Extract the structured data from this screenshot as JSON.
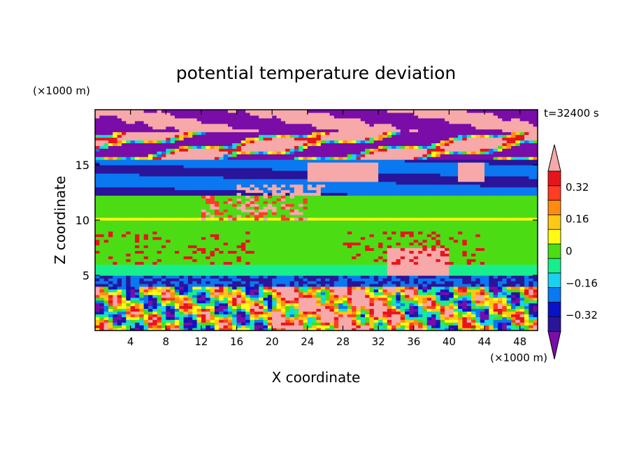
{
  "chart_data": {
    "type": "heatmap",
    "title": "potential temperature deviation",
    "xlabel": "X coordinate",
    "ylabel": "Z coordinate",
    "x_unit": "(×1000 m)",
    "y_unit": "(×1000 m)",
    "time_label": "t=32400 s",
    "xlim": [
      0,
      50
    ],
    "ylim": [
      0,
      20
    ],
    "x_ticks": [
      4,
      8,
      12,
      16,
      20,
      24,
      28,
      32,
      36,
      40,
      44,
      48
    ],
    "y_ticks": [
      5,
      10,
      15
    ],
    "colorbar": {
      "levels": [
        -0.48,
        -0.4,
        -0.32,
        -0.24,
        -0.16,
        -0.08,
        0,
        0.08,
        0.16,
        0.24,
        0.32,
        0.4,
        0.48
      ],
      "tick_labels": [
        "0.32",
        "0.16",
        "0",
        "−0.16",
        "−0.32"
      ],
      "tick_values": [
        0.32,
        0.16,
        0,
        -0.16,
        -0.32
      ],
      "colors": [
        "#7a0ca8",
        "#2a149a",
        "#0a12c8",
        "#0a78f0",
        "#18d2f0",
        "#18ee8c",
        "#4cdc14",
        "#fffa14",
        "#ffc814",
        "#ff8c10",
        "#ff3c24",
        "#e8141c",
        "#f7a8a8"
      ],
      "extend": "both"
    },
    "structure": [
      {
        "z_range": [
          18,
          20
        ],
        "pattern": "pink and purple bands"
      },
      {
        "z_range": [
          15.5,
          18
        ],
        "pattern": "pink/purple layers with red-orange edges"
      },
      {
        "z_range": [
          12,
          15.5
        ],
        "pattern": "blue and dark-blue layers"
      },
      {
        "z_range": [
          10,
          12.5
        ],
        "pattern": "green band with pink plumes"
      },
      {
        "z_range": [
          5,
          10
        ],
        "pattern": "green band with scattered filaments"
      },
      {
        "z_range": [
          4,
          5
        ],
        "pattern": "cyan/blue layer"
      },
      {
        "z_range": [
          0,
          4
        ],
        "pattern": "turbulent mixed-colour boundary layer"
      }
    ]
  }
}
